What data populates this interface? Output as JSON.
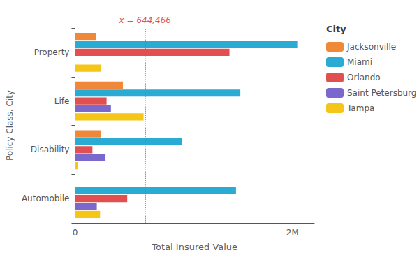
{
  "chart_data": {
    "type": "bar",
    "orientation": "horizontal",
    "categories": [
      "Automobile",
      "Disability",
      "Life",
      "Property"
    ],
    "series": [
      {
        "name": "Jacksonville",
        "color": "#F0883A",
        "values": [
          0,
          240000,
          440000,
          190000
        ]
      },
      {
        "name": "Miami",
        "color": "#29ABD4",
        "values": [
          1480000,
          980000,
          1520000,
          2050000
        ]
      },
      {
        "name": "Orlando",
        "color": "#E05050",
        "values": [
          480000,
          160000,
          290000,
          1420000
        ]
      },
      {
        "name": "Saint Petersburg",
        "color": "#7B68CC",
        "values": [
          200000,
          280000,
          330000,
          0
        ]
      },
      {
        "name": "Tampa",
        "color": "#F5C518",
        "values": [
          230000,
          25000,
          630000,
          240000
        ]
      }
    ],
    "xlabel": "Total Insured Value",
    "ylabel": "Policy Class, City",
    "legend_title": "City",
    "legend": "right",
    "xlim": [
      0,
      2200000
    ],
    "xticks": [
      0,
      {
        "value": 2000000,
        "label": "2M"
      }
    ],
    "grid": true,
    "annotations": [
      {
        "text": "x̄ = 644,466",
        "x": 644466,
        "color": "#E05050",
        "line_style": "dotted"
      }
    ]
  }
}
